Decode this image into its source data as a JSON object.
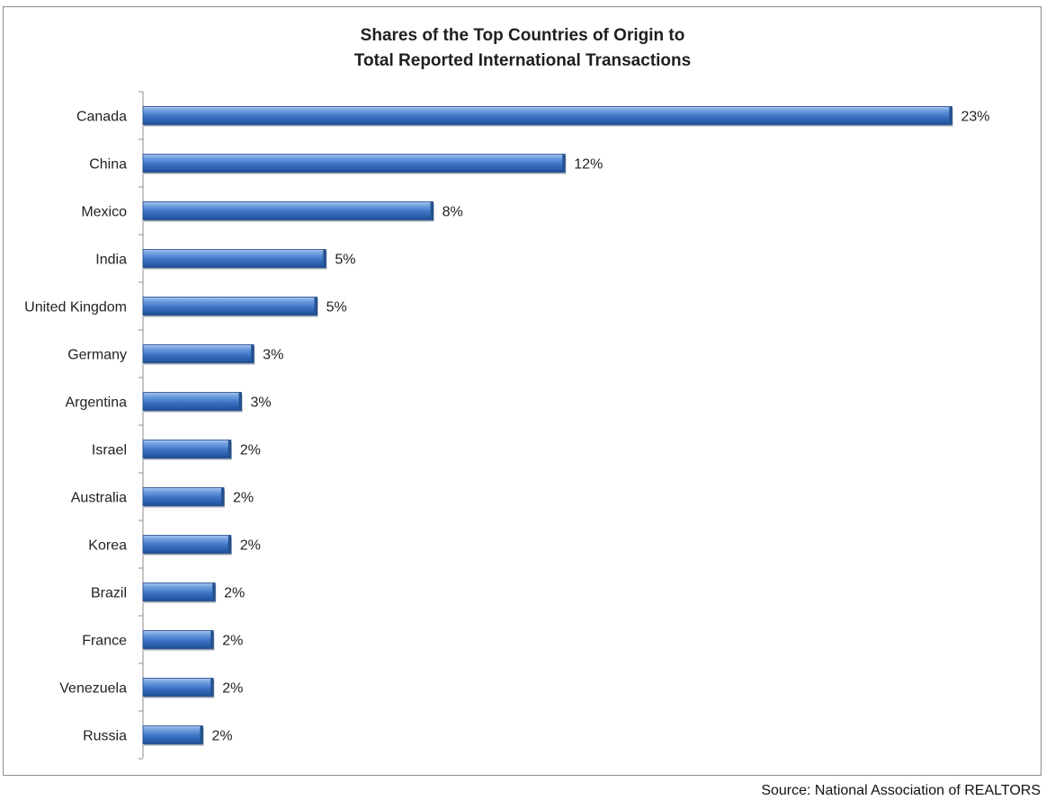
{
  "chart_data": {
    "type": "bar",
    "orientation": "horizontal",
    "title_lines": [
      "Shares of the Top Countries of Origin to",
      "Total Reported International Transactions"
    ],
    "categories": [
      "Canada",
      "China",
      "Mexico",
      "India",
      "United Kingdom",
      "Germany",
      "Argentina",
      "Israel",
      "Australia",
      "Korea",
      "Brazil",
      "France",
      "Venezuela",
      "Russia"
    ],
    "values": [
      23,
      12,
      8.25,
      5.2,
      4.95,
      3.15,
      2.8,
      2.5,
      2.3,
      2.5,
      2.05,
      2.0,
      2.0,
      1.7
    ],
    "data_labels": [
      "23%",
      "12%",
      "8%",
      "5%",
      "5%",
      "3%",
      "3%",
      "2%",
      "2%",
      "2%",
      "2%",
      "2%",
      "2%",
      "2%"
    ],
    "unit": "%",
    "xlim": [
      0,
      23.5
    ],
    "grid": false,
    "legend": "none",
    "bar_color": "#3d74c5",
    "source": "Source: National Association of REALTORS"
  }
}
